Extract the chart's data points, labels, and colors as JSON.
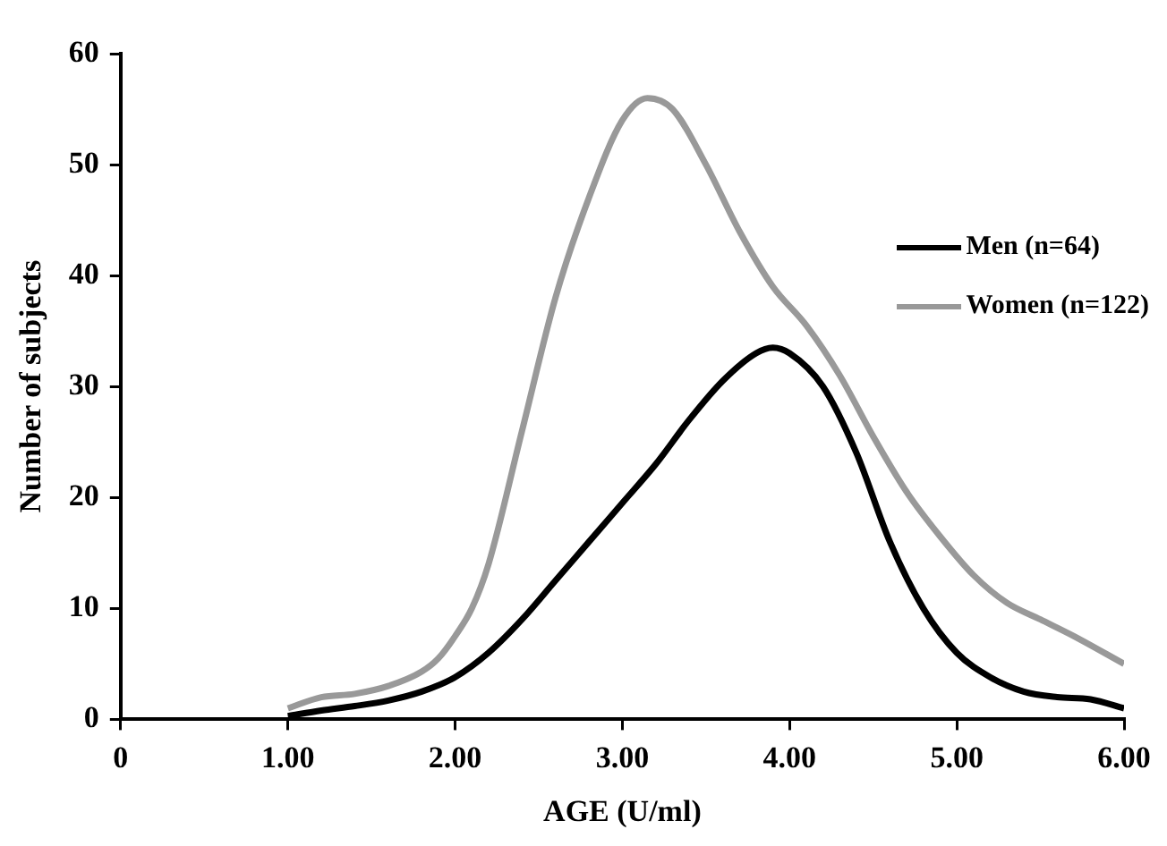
{
  "chart_data": {
    "type": "line",
    "xlabel": "AGE (U/ml)",
    "ylabel": "Number of subjects",
    "xlim": [
      0,
      6
    ],
    "xticks": [
      0,
      {
        "value": 1,
        "label": "1.00"
      },
      {
        "value": 2,
        "label": "2.00"
      },
      {
        "value": 3,
        "label": "3.00"
      },
      {
        "value": 4,
        "label": "4.00"
      },
      {
        "value": 5,
        "label": "5.00"
      },
      {
        "value": 6,
        "label": "6.00"
      }
    ],
    "ylim": [
      0,
      60
    ],
    "yticks": [
      0,
      10,
      20,
      30,
      40,
      50,
      60
    ],
    "grid": false,
    "legend": "right",
    "marker": "none",
    "line_style": "solid",
    "series": [
      {
        "name": "Men (n=64)",
        "color": "#000000",
        "x": [
          1.0,
          1.2,
          1.4,
          1.6,
          1.8,
          2.0,
          2.2,
          2.4,
          2.6,
          2.8,
          3.0,
          3.2,
          3.4,
          3.6,
          3.8,
          3.9,
          4.0,
          4.2,
          4.4,
          4.6,
          4.8,
          5.0,
          5.2,
          5.4,
          5.6,
          5.8,
          6.0
        ],
        "values": [
          0.3,
          0.8,
          1.2,
          1.7,
          2.5,
          3.8,
          6,
          9,
          12.5,
          16,
          19.5,
          23,
          27,
          30.5,
          33,
          33.5,
          33,
          30,
          24,
          16,
          10,
          6,
          3.8,
          2.5,
          2,
          1.8,
          1
        ]
      },
      {
        "name": "Women (n=122)",
        "color": "#999999",
        "x": [
          1.0,
          1.2,
          1.4,
          1.6,
          1.8,
          1.9,
          2.0,
          2.1,
          2.2,
          2.4,
          2.6,
          2.8,
          3.0,
          3.15,
          3.3,
          3.5,
          3.7,
          3.9,
          4.1,
          4.3,
          4.5,
          4.7,
          4.9,
          5.1,
          5.3,
          5.5,
          5.7,
          6.0
        ],
        "values": [
          1,
          2,
          2.3,
          3,
          4.3,
          5.5,
          7.5,
          10,
          14,
          26,
          38,
          47,
          54,
          56,
          55,
          50,
          44,
          39,
          35.5,
          31,
          25.5,
          20.5,
          16.5,
          13,
          10.5,
          9,
          7.5,
          5
        ]
      }
    ]
  }
}
